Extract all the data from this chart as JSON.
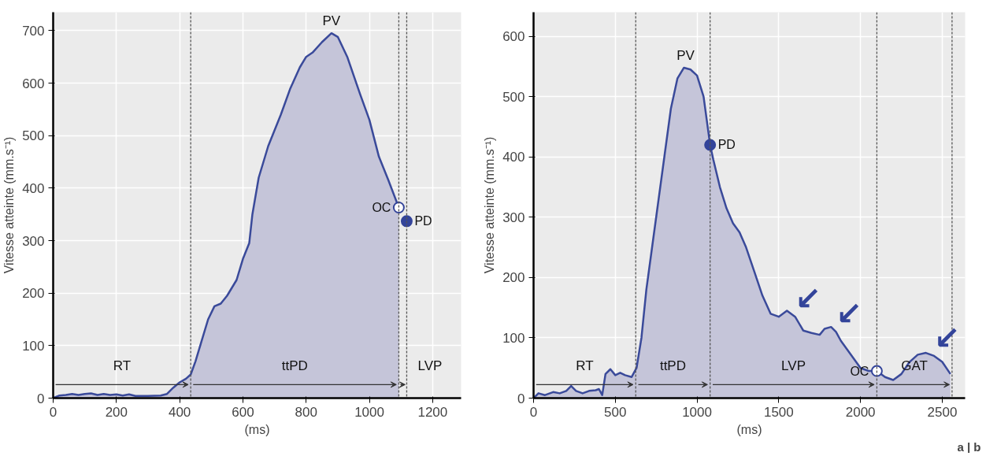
{
  "chart_data": [
    {
      "type": "area",
      "xlabel": "(ms)",
      "ylabel": "Vitesse atteinte (mm.s⁻¹)",
      "xlim": [
        0,
        1290
      ],
      "ylim": [
        0,
        735
      ],
      "xticks": [
        0,
        200,
        400,
        600,
        800,
        1000,
        1200
      ],
      "yticks": [
        0,
        100,
        200,
        300,
        400,
        500,
        600,
        700
      ],
      "grid": true,
      "series": [
        {
          "color": "#3a4a9a",
          "x": [
            0,
            20,
            40,
            60,
            80,
            100,
            120,
            140,
            160,
            180,
            200,
            220,
            240,
            260,
            300,
            340,
            360,
            380,
            400,
            420,
            435,
            450,
            470,
            490,
            510,
            530,
            550,
            580,
            600,
            620,
            630,
            650,
            680,
            720,
            750,
            780,
            800,
            820,
            850,
            880,
            900,
            930,
            970,
            1000,
            1030,
            1060,
            1093
          ],
          "values": [
            0,
            5,
            6,
            8,
            6,
            8,
            9,
            6,
            8,
            6,
            7,
            5,
            7,
            4,
            4,
            5,
            8,
            20,
            30,
            37,
            45,
            70,
            110,
            150,
            175,
            180,
            195,
            225,
            265,
            295,
            350,
            420,
            480,
            540,
            590,
            630,
            650,
            658,
            678,
            695,
            688,
            650,
            580,
            530,
            460,
            415,
            363
          ]
        },
        {
          "type": "scatter",
          "name": "OC",
          "color": "#ffffff",
          "marker": "circle",
          "x": [
            1093
          ],
          "values": [
            363
          ]
        },
        {
          "type": "scatter",
          "name": "PD",
          "color": "#33449a",
          "marker": "circle",
          "x": [
            1118
          ],
          "values": [
            337
          ]
        }
      ],
      "ref_lines": [
        {
          "axis": "x",
          "value": 435,
          "line_style": "dashed"
        },
        {
          "axis": "x",
          "value": 1093,
          "line_style": "dashed"
        },
        {
          "axis": "x",
          "value": 1118,
          "line_style": "dashed"
        }
      ],
      "annotations": [
        {
          "text": "PV",
          "x": 880,
          "y": 695
        },
        "RT",
        "ttPD",
        "LVP"
      ]
    },
    {
      "type": "area",
      "xlabel": "(ms)",
      "ylabel": "Vitesse atteinte (mm.s⁻¹)",
      "xlim": [
        0,
        2640
      ],
      "ylim": [
        0,
        640
      ],
      "xticks": [
        0,
        500,
        1000,
        1500,
        2000,
        2500
      ],
      "yticks": [
        0,
        100,
        200,
        300,
        400,
        500,
        600
      ],
      "grid": true,
      "series": [
        {
          "color": "#3a4a9a",
          "x": [
            0,
            30,
            70,
            120,
            160,
            200,
            230,
            260,
            300,
            340,
            380,
            400,
            420,
            440,
            470,
            500,
            530,
            560,
            600,
            630,
            660,
            690,
            720,
            760,
            800,
            840,
            880,
            920,
            960,
            1000,
            1040,
            1080,
            1100,
            1140,
            1180,
            1220,
            1260,
            1300,
            1350,
            1400,
            1450,
            1500,
            1550,
            1600,
            1650,
            1700,
            1750,
            1780,
            1820,
            1850,
            1880,
            1920,
            1960,
            2000,
            2050,
            2100,
            2150,
            2200,
            2250,
            2300,
            2350,
            2400,
            2450,
            2500,
            2550
          ],
          "values": [
            0,
            8,
            5,
            10,
            8,
            12,
            20,
            12,
            8,
            12,
            13,
            15,
            5,
            40,
            48,
            38,
            42,
            38,
            35,
            50,
            100,
            180,
            240,
            320,
            400,
            480,
            530,
            548,
            545,
            535,
            500,
            420,
            395,
            350,
            315,
            290,
            275,
            250,
            210,
            170,
            140,
            135,
            145,
            135,
            112,
            108,
            105,
            115,
            118,
            110,
            95,
            80,
            65,
            50,
            45,
            45,
            35,
            30,
            40,
            60,
            72,
            75,
            70,
            60,
            40
          ]
        },
        {
          "type": "scatter",
          "name": "PD",
          "color": "#33449a",
          "marker": "circle",
          "x": [
            1080
          ],
          "values": [
            420
          ]
        },
        {
          "type": "scatter",
          "name": "OC",
          "color": "#ffffff",
          "marker": "circle",
          "x": [
            2100
          ],
          "values": [
            45
          ]
        }
      ],
      "ref_lines": [
        {
          "axis": "x",
          "value": 625,
          "line_style": "dashed"
        },
        {
          "axis": "x",
          "value": 1080,
          "line_style": "dashed"
        },
        {
          "axis": "x",
          "value": 2100,
          "line_style": "dashed"
        },
        {
          "axis": "x",
          "value": 2560,
          "line_style": "dashed"
        }
      ],
      "annotations": [
        {
          "text": "PV",
          "x": 930,
          "y": 548
        },
        "RT",
        "ttPD",
        "LVP",
        "GAT",
        {
          "text": "↙",
          "x": 1600,
          "y": 135
        },
        {
          "text": "↙",
          "x": 1850,
          "y": 110
        },
        {
          "text": "↙",
          "x": 2450,
          "y": 70
        },
        "a | b"
      ]
    }
  ]
}
